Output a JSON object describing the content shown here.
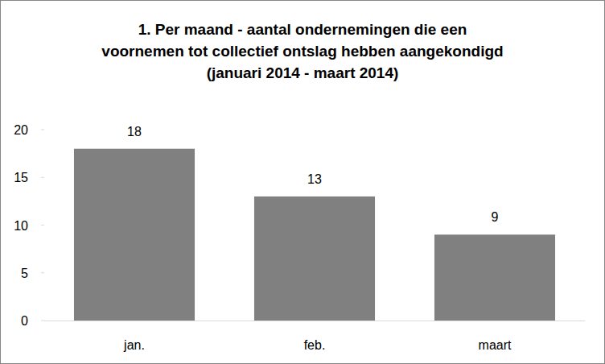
{
  "chart_data": {
    "type": "bar",
    "title": "1. Per maand - aantal ondernemingen die een\nvoornemen tot collectief ontslag hebben aangekondigd\n(januari 2014 - maart 2014)",
    "categories": [
      "jan.",
      "feb.",
      "maart"
    ],
    "values": [
      18,
      13,
      9
    ],
    "color": "#808080",
    "ylim": [
      0,
      20
    ],
    "yticks": [
      0,
      5,
      10,
      15,
      20
    ],
    "grid": false,
    "data_labels": true
  }
}
